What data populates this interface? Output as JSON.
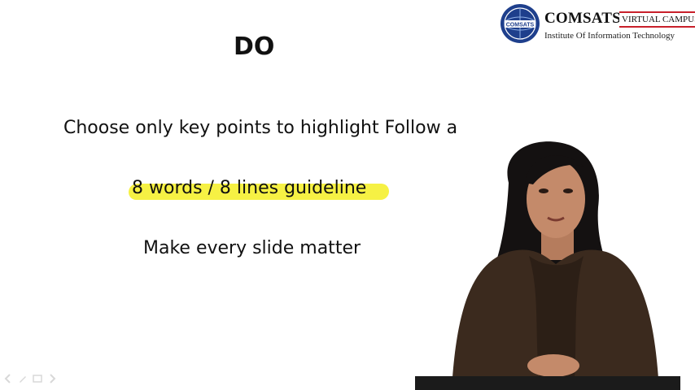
{
  "logo": {
    "brand": "COMSATS",
    "tag": "VIRTUAL CAMPUS",
    "subtitle": "Institute Of Information Technology",
    "emblem_text": "COMSATS",
    "colors": {
      "emblem_blue": "#1e3f8c",
      "tag_red": "#c81f2a"
    }
  },
  "slide": {
    "heading": "DO",
    "bullets": [
      "Choose only key points to highlight Follow a",
      "8 words / 8 lines guideline",
      "Make every slide matter"
    ],
    "highlight_color": "#f5f03a"
  },
  "presenter": {
    "colors": {
      "hair": "#141111",
      "skin": "#c48a6a",
      "clothing": "#3b2a1e"
    }
  },
  "player_controls": {
    "icons": [
      "prev-icon",
      "pen-icon",
      "slides-icon",
      "next-icon"
    ]
  }
}
